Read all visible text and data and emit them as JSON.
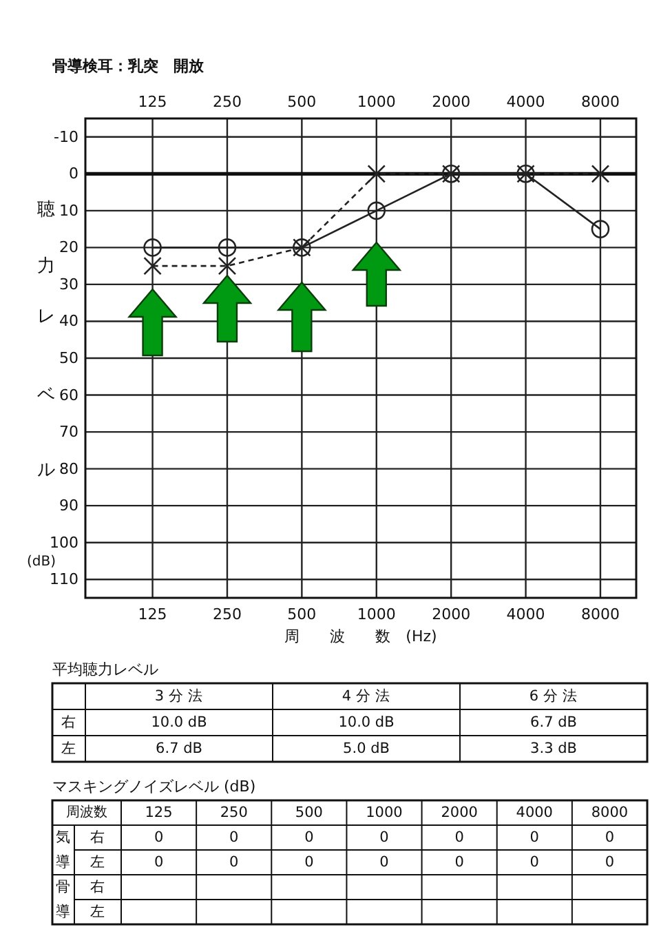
{
  "chart_data": [
    {
      "type": "line",
      "title": "骨導検耳：乳突　開放",
      "xlabel": "周　　波　　数　(Hz)",
      "ylabel": "聴力レベル",
      "annotations": [
        "(dB)"
      ],
      "categories": [
        "125",
        "250",
        "500",
        "1000",
        "2000",
        "4000",
        "8000"
      ],
      "series": [
        {
          "color": "#222222",
          "marker": "circle",
          "line_style": "solid",
          "values": [
            20,
            20,
            20,
            10,
            0,
            0,
            15
          ]
        },
        {
          "color": "#222222",
          "marker": "cross",
          "line_style": "dashed",
          "values": [
            25,
            25,
            20,
            0,
            0,
            0,
            0
          ]
        }
      ],
      "ylim": [
        115,
        -15
      ],
      "yticks": [
        -10,
        0,
        10,
        20,
        30,
        40,
        50,
        60,
        70,
        80,
        90,
        100,
        110
      ],
      "grid": true,
      "ref_lines": [
        {
          "axis": "y",
          "value": 0
        }
      ]
    },
    {
      "type": "other",
      "title": "平均聴力レベル",
      "categories": [
        "3 分 法",
        "4 分 法",
        "6 分 法"
      ],
      "y_categories": [
        "右",
        "左"
      ],
      "cell_labels": [
        [
          "10.0 dB",
          "10.0 dB",
          "6.7 dB"
        ],
        [
          "6.7 dB",
          "5.0 dB",
          "3.3 dB"
        ]
      ]
    },
    {
      "type": "other",
      "title": "マスキングノイズレベル (dB)",
      "annotations": [
        "周波数"
      ],
      "categories": [
        "125",
        "250",
        "500",
        "1000",
        "2000",
        "4000",
        "8000"
      ],
      "y_categories": [
        "右",
        "左",
        "右",
        "左"
      ],
      "y2_categories": [
        "気",
        "導",
        "骨",
        "導"
      ],
      "cell_labels": [
        [
          "0",
          "0",
          "0",
          "0",
          "0",
          "0",
          "0"
        ],
        [
          "0",
          "0",
          "0",
          "0",
          "0",
          "0",
          "0"
        ],
        [
          null,
          null,
          null,
          null,
          null,
          null,
          null
        ],
        [
          null,
          null,
          null,
          null,
          null,
          null,
          null
        ]
      ]
    }
  ]
}
